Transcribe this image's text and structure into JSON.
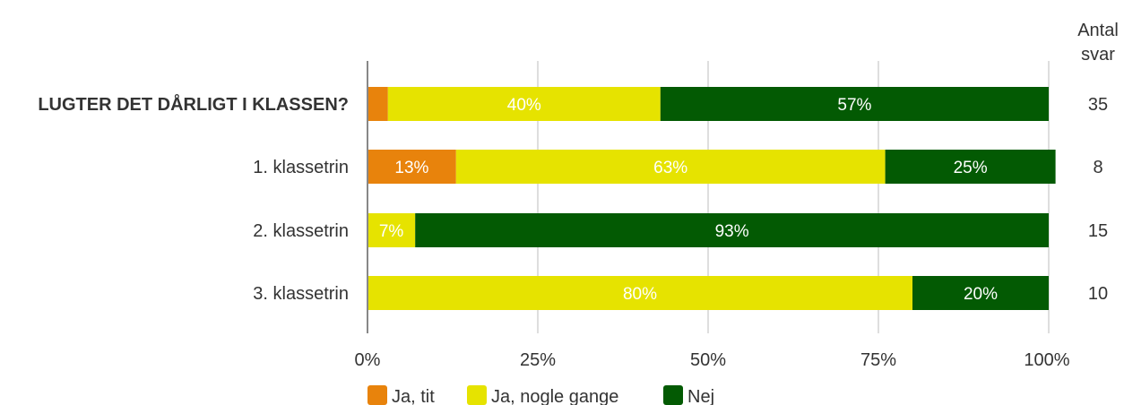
{
  "chart_data": {
    "type": "bar",
    "orientation": "horizontal",
    "stacked": true,
    "categories": [
      "LUGTER DET DÅRLIGT I KLASSEN?",
      "1. klassetrin",
      "2. klassetrin",
      "3. klassetrin"
    ],
    "series": [
      {
        "name": "Ja, tit",
        "color": "#e8830c",
        "values": [
          3,
          13,
          0,
          0
        ]
      },
      {
        "name": "Ja, nogle gange",
        "color": "#e6e300",
        "values": [
          40,
          63,
          7,
          80
        ]
      },
      {
        "name": "Nej",
        "color": "#035a03",
        "values": [
          57,
          25,
          93,
          20
        ]
      }
    ],
    "counts_header": [
      "Antal",
      "svar"
    ],
    "counts": [
      35,
      8,
      15,
      10
    ],
    "x_ticks": [
      "0%",
      "25%",
      "50%",
      "75%",
      "100%"
    ],
    "xlim": [
      0,
      100
    ],
    "grid": true,
    "legend_position": "bottom"
  }
}
